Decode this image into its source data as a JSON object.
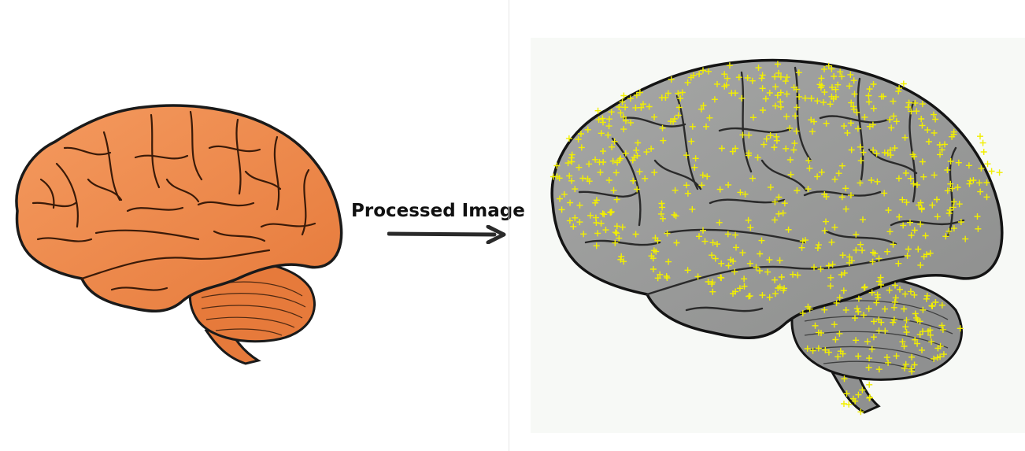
{
  "caption": "Processed Image",
  "colors": {
    "original_fill": "#f28a4f",
    "original_shade": "#d96c33",
    "outline": "#1a1a1a",
    "processed_fill": "#9a9b9a",
    "processed_shade": "#7b7c7c",
    "processed_background": "#f7f9f6",
    "keypoint_marker": "#f2ef00",
    "divider": "#e6e6e6"
  },
  "icons": {
    "arrow": "right-arrow-icon"
  }
}
